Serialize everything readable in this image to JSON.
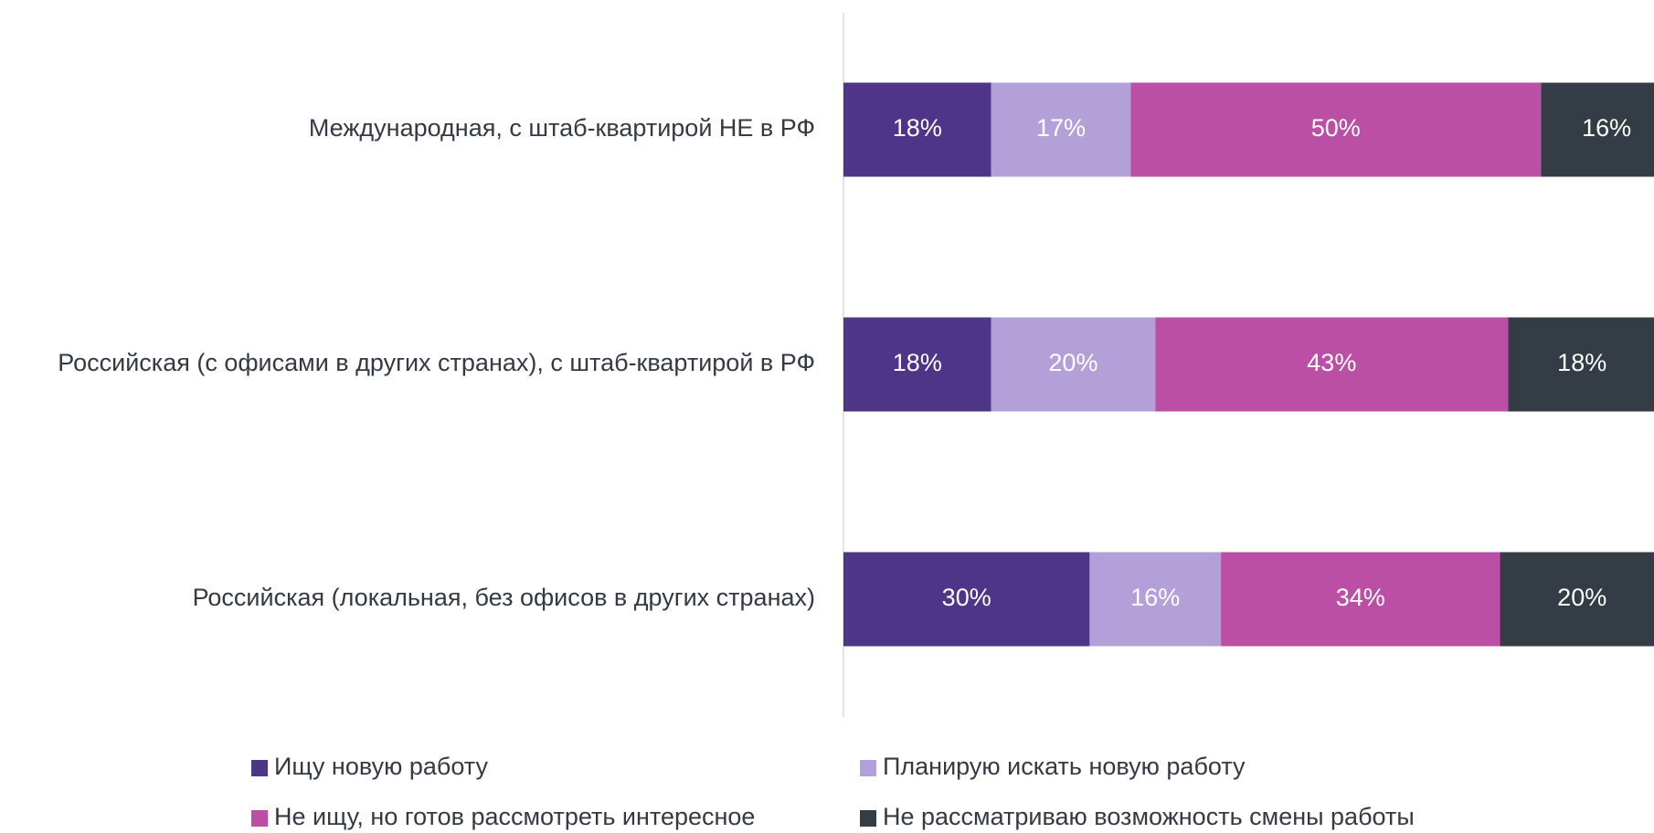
{
  "chart_data": {
    "type": "stacked_barh",
    "categories": [
      "Международная, с штаб-квартирой НЕ в РФ",
      "Российская (с офисами в других странах), с штаб-квартирой в РФ",
      "Российская (локальная, без офисов в других странах)"
    ],
    "series": [
      {
        "name": "Ищу новую работу",
        "color": "#4e3587",
        "values": [
          18,
          18,
          30
        ],
        "value_labels": [
          "18%",
          "18%",
          "30%"
        ]
      },
      {
        "name": "Планирую искать новую работу",
        "color": "#b3a0d9",
        "values": [
          17,
          20,
          16
        ],
        "value_labels": [
          "17%",
          "20%",
          "16%"
        ]
      },
      {
        "name": "Не ищу, но готов рассмотреть интересное",
        "color": "#bb4fa5",
        "values": [
          50,
          43,
          34
        ],
        "value_labels": [
          "50%",
          "43%",
          "34%"
        ]
      },
      {
        "name": "Не рассматриваю возможность смены работы",
        "color": "#343c45",
        "values": [
          16,
          18,
          20
        ],
        "value_labels": [
          "16%",
          "18%",
          "20%"
        ]
      }
    ],
    "xlim": [
      0,
      100
    ]
  }
}
